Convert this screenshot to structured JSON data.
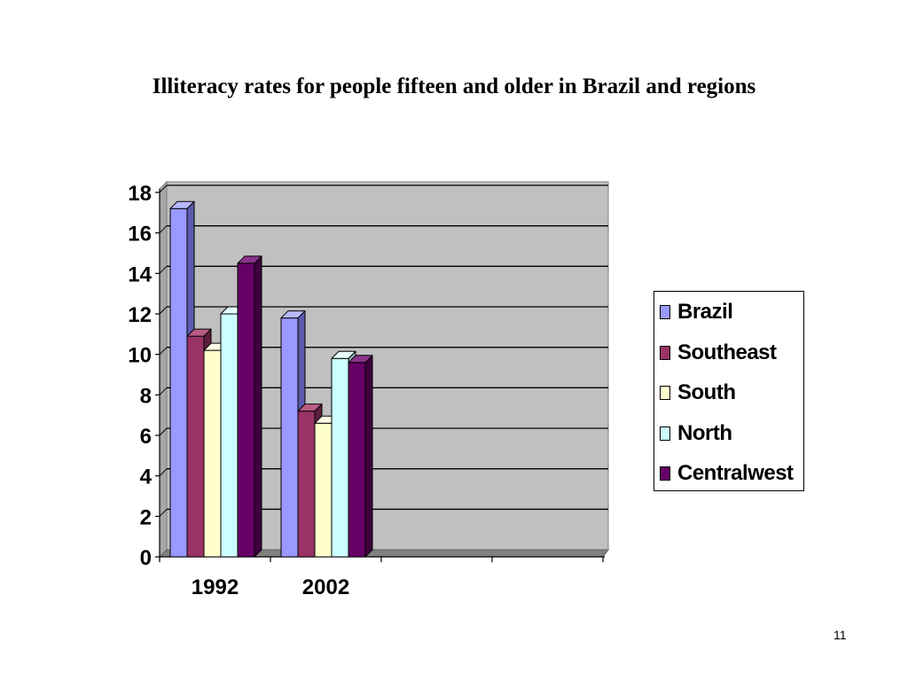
{
  "slide": {
    "title": "Illiteracy rates for people fifteen and older in Brazil and regions",
    "page_number": "11"
  },
  "colors": {
    "plot_background": "#c0c0c0",
    "floor": "#808080",
    "gridline": "#000000"
  },
  "chart_data": {
    "type": "bar",
    "title": "Illiteracy rates for people fifteen and older in Brazil and regions",
    "xlabel": "",
    "ylabel": "",
    "categories": [
      "1992",
      "2002",
      "",
      ""
    ],
    "ylim": [
      0,
      18
    ],
    "yticks": [
      0,
      2,
      4,
      6,
      8,
      10,
      12,
      14,
      16,
      18
    ],
    "grid": true,
    "legend_position": "right",
    "style": "3d-clustered-column",
    "series": [
      {
        "name": "Brazil",
        "color": "#9999ff",
        "side_color": "#5b5bab",
        "top_color": "#b8b8ff",
        "values": [
          17.2,
          11.8,
          null,
          null
        ]
      },
      {
        "name": "Southeast",
        "color": "#993366",
        "side_color": "#5e1f3e",
        "top_color": "#b85c86",
        "values": [
          10.9,
          7.2,
          null,
          null
        ]
      },
      {
        "name": "South",
        "color": "#ffffcc",
        "side_color": "#b8b88f",
        "top_color": "#ffffe6",
        "values": [
          10.2,
          6.6,
          null,
          null
        ]
      },
      {
        "name": "North",
        "color": "#ccffff",
        "side_color": "#8fb8b8",
        "top_color": "#e6ffff",
        "values": [
          12.0,
          9.8,
          null,
          null
        ]
      },
      {
        "name": "Centralwest",
        "color": "#660066",
        "side_color": "#3d003d",
        "top_color": "#8c338c",
        "values": [
          14.5,
          9.6,
          null,
          null
        ]
      }
    ]
  }
}
